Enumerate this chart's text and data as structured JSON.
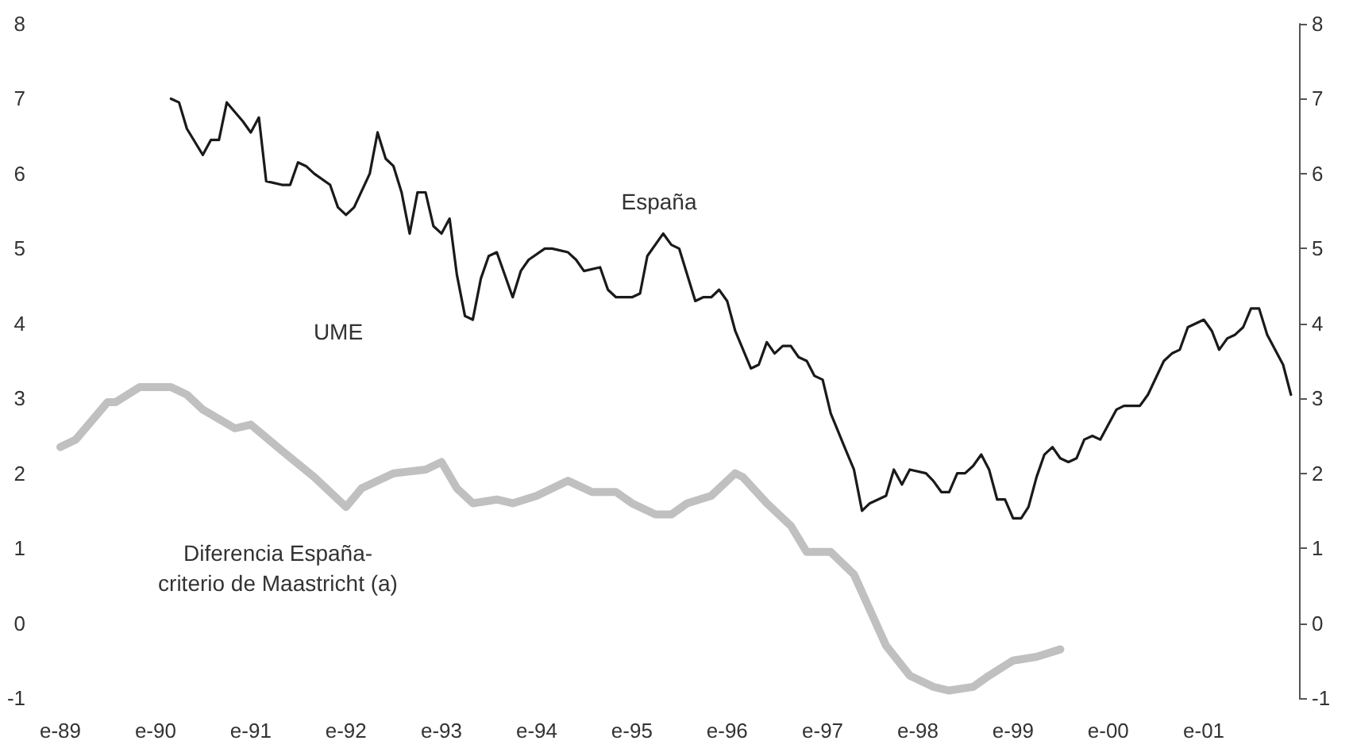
{
  "chart_data": {
    "type": "line",
    "xlim": [
      "1989-01",
      "2002-01"
    ],
    "xticks": [
      {
        "value": "1989-01",
        "label": "e-89"
      },
      {
        "value": "1990-01",
        "label": "e-90"
      },
      {
        "value": "1991-01",
        "label": "e-91"
      },
      {
        "value": "1992-01",
        "label": "e-92"
      },
      {
        "value": "1993-01",
        "label": "e-93"
      },
      {
        "value": "1994-01",
        "label": "e-94"
      },
      {
        "value": "1995-01",
        "label": "e-95"
      },
      {
        "value": "1996-01",
        "label": "e-96"
      },
      {
        "value": "1997-01",
        "label": "e-97"
      },
      {
        "value": "1998-01",
        "label": "e-98"
      },
      {
        "value": "1999-01",
        "label": "e-99"
      },
      {
        "value": "2000-01",
        "label": "e-00"
      },
      {
        "value": "2001-01",
        "label": "e-01"
      }
    ],
    "ylim": [
      -1,
      8
    ],
    "yticks": [
      -1,
      0,
      1,
      2,
      3,
      4,
      5,
      6,
      7,
      8
    ],
    "y2lim": [
      -1,
      8
    ],
    "y2ticks": [
      -1,
      0,
      1,
      2,
      3,
      4,
      5,
      6,
      7,
      8
    ],
    "grid": false,
    "marker": "none",
    "annotations": [
      "España",
      "UME",
      "Diferencia España-\ncriterio de Maastricht (a)"
    ],
    "series": [
      {
        "color": "#1a1a1a",
        "x": [
          "1990-03",
          "1990-04",
          "1990-05",
          "1990-07",
          "1990-08",
          "1990-09",
          "1990-10",
          "1990-12",
          "1991-01",
          "1991-02",
          "1991-03",
          "1991-05",
          "1991-06",
          "1991-07",
          "1991-08",
          "1991-09",
          "1991-11",
          "1991-12",
          "1992-01",
          "1992-02",
          "1992-04",
          "1992-05",
          "1992-06",
          "1992-07",
          "1992-08",
          "1992-09",
          "1992-10",
          "1992-11",
          "1992-12",
          "1993-01",
          "1993-02",
          "1993-03",
          "1993-04",
          "1993-05",
          "1993-06",
          "1993-07",
          "1993-08",
          "1993-10",
          "1993-11",
          "1993-12",
          "1994-02",
          "1994-03",
          "1994-05",
          "1994-06",
          "1994-07",
          "1994-09",
          "1994-10",
          "1994-11",
          "1995-01",
          "1995-02",
          "1995-03",
          "1995-05",
          "1995-06",
          "1995-07",
          "1995-09",
          "1995-10",
          "1995-11",
          "1995-12",
          "1996-01",
          "1996-02",
          "1996-04",
          "1996-05",
          "1996-06",
          "1996-07",
          "1996-08",
          "1996-09",
          "1996-10",
          "1996-11",
          "1996-12",
          "1997-01",
          "1997-02",
          "1997-04",
          "1997-05",
          "1997-06",
          "1997-07",
          "1997-09",
          "1997-10",
          "1997-11",
          "1997-12",
          "1998-02",
          "1998-03",
          "1998-04",
          "1998-05",
          "1998-06",
          "1998-07",
          "1998-08",
          "1998-09",
          "1998-10",
          "1998-11",
          "1998-12",
          "1999-01",
          "1999-02",
          "1999-03",
          "1999-04",
          "1999-05",
          "1999-06",
          "1999-07",
          "1999-08",
          "1999-09",
          "1999-10",
          "1999-11",
          "1999-12",
          "2000-02",
          "2000-03",
          "2000-04",
          "2000-05",
          "2000-06",
          "2000-08",
          "2000-09",
          "2000-10",
          "2000-11",
          "2001-01",
          "2001-02",
          "2001-03",
          "2001-04",
          "2001-05",
          "2001-06",
          "2001-07",
          "2001-08",
          "2001-09",
          "2001-11",
          "2001-12"
        ],
        "values": [
          7.0,
          6.95,
          6.6,
          6.25,
          6.45,
          6.45,
          6.95,
          6.7,
          6.55,
          6.75,
          5.9,
          5.85,
          5.85,
          6.15,
          6.1,
          6.0,
          5.85,
          5.55,
          5.45,
          5.55,
          6.0,
          6.55,
          6.2,
          6.1,
          5.75,
          5.2,
          5.75,
          5.75,
          5.3,
          5.2,
          5.4,
          4.65,
          4.1,
          4.05,
          4.6,
          4.9,
          4.95,
          4.35,
          4.7,
          4.85,
          5.0,
          5.0,
          4.95,
          4.85,
          4.7,
          4.75,
          4.45,
          4.35,
          4.35,
          4.4,
          4.9,
          5.2,
          5.05,
          5.0,
          4.3,
          4.35,
          4.35,
          4.45,
          4.3,
          3.9,
          3.4,
          3.45,
          3.75,
          3.6,
          3.7,
          3.7,
          3.55,
          3.5,
          3.3,
          3.25,
          2.8,
          2.3,
          2.05,
          1.5,
          1.6,
          1.7,
          2.05,
          1.85,
          2.05,
          2.0,
          1.9,
          1.75,
          1.75,
          2.0,
          2.0,
          2.1,
          2.25,
          2.05,
          1.65,
          1.65,
          1.4,
          1.4,
          1.55,
          1.95,
          2.25,
          2.35,
          2.2,
          2.15,
          2.2,
          2.45,
          2.5,
          2.45,
          2.85,
          2.9,
          2.9,
          2.9,
          3.05,
          3.5,
          3.6,
          3.65,
          3.95,
          4.05,
          3.9,
          3.65,
          3.8,
          3.85,
          3.95,
          4.2,
          4.2,
          3.85,
          3.45,
          3.05
        ]
      },
      {
        "color": "#c0c0c0",
        "x": [
          "1989-01",
          "1989-03",
          "1989-07",
          "1989-08",
          "1989-11",
          "1990-03",
          "1990-05",
          "1990-07",
          "1990-11",
          "1991-01",
          "1991-05",
          "1991-09",
          "1992-01",
          "1992-03",
          "1992-07",
          "1992-11",
          "1993-01",
          "1993-03",
          "1993-05",
          "1993-08",
          "1993-10",
          "1994-01",
          "1994-05",
          "1994-08",
          "1994-11",
          "1995-01",
          "1995-04",
          "1995-06",
          "1995-08",
          "1995-11",
          "1996-01",
          "1996-02",
          "1996-03",
          "1996-06",
          "1996-09",
          "1996-11",
          "1997-02",
          "1997-05",
          "1997-09",
          "1997-12",
          "1998-03",
          "1998-05",
          "1998-08",
          "1998-10",
          "1999-01",
          "1999-04",
          "1999-07"
        ],
        "values": [
          2.35,
          2.45,
          2.95,
          2.95,
          3.15,
          3.15,
          3.05,
          2.85,
          2.6,
          2.65,
          2.3,
          1.95,
          1.55,
          1.8,
          2.0,
          2.05,
          2.15,
          1.8,
          1.6,
          1.65,
          1.6,
          1.7,
          1.9,
          1.75,
          1.75,
          1.6,
          1.45,
          1.45,
          1.6,
          1.7,
          1.9,
          2.0,
          1.95,
          1.6,
          1.3,
          0.95,
          0.95,
          0.65,
          -0.3,
          -0.7,
          -0.85,
          -0.9,
          -0.85,
          -0.7,
          -0.5,
          -0.45,
          -0.35
        ]
      }
    ]
  }
}
